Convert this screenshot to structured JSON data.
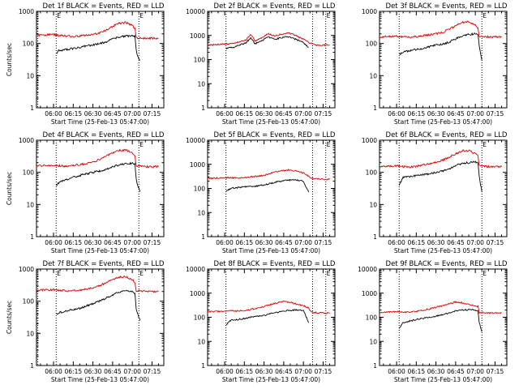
{
  "figure": {
    "panel_title_suffix": "BLACK = Events, RED = LLD",
    "colors": {
      "events": "#000000",
      "lld": "#dd0000",
      "frame": "#000000"
    }
  },
  "chart_data": [
    {
      "type": "line",
      "title": "Det 1f BLACK = Events, RED = LLD",
      "xlabel": "Start Time (25-Feb-13 05:47:00)",
      "ylabel": "Counts/sec",
      "yscale": "log",
      "ylim": [
        1,
        1000
      ],
      "xlim": [
        "05:47",
        "07:24"
      ],
      "yticks": [
        "1",
        "10",
        "100",
        "1000"
      ],
      "xticks": [
        "06:00",
        "06:15",
        "06:30",
        "06:45",
        "07:00",
        "07:15"
      ],
      "markers": [
        "05:48",
        "06:02",
        "07:05"
      ],
      "marker_labels": [
        "E",
        "E"
      ],
      "series": [
        {
          "color": "#000000",
          "x": [
            "06:02",
            "06:04",
            "06:10",
            "06:15",
            "06:20",
            "06:25",
            "06:30",
            "06:35",
            "06:40",
            "06:45",
            "06:50",
            "06:55",
            "07:00",
            "07:02",
            "07:03",
            "07:04",
            "07:06"
          ],
          "y": [
            50,
            60,
            65,
            70,
            75,
            85,
            90,
            100,
            110,
            140,
            160,
            170,
            175,
            170,
            60,
            40,
            30
          ]
        },
        {
          "color": "#dd0000",
          "x": [
            "05:47",
            "05:55",
            "06:00",
            "06:05",
            "06:10",
            "06:15",
            "06:20",
            "06:25",
            "06:30",
            "06:35",
            "06:40",
            "06:45",
            "06:50",
            "06:55",
            "07:00",
            "07:02",
            "07:03",
            "07:10",
            "07:20"
          ],
          "y": [
            180,
            185,
            190,
            175,
            170,
            165,
            170,
            180,
            190,
            210,
            260,
            340,
            430,
            450,
            360,
            300,
            150,
            145,
            145
          ]
        }
      ]
    },
    {
      "type": "line",
      "title": "Det 2f BLACK = Events, RED = LLD",
      "xlabel": "Start Time (25-Feb-13 05:47:00)",
      "ylabel": "",
      "yscale": "log",
      "ylim": [
        1,
        10000
      ],
      "xlim": [
        "05:47",
        "07:24"
      ],
      "yticks": [
        "1",
        "10",
        "100",
        "1000",
        "10000"
      ],
      "xticks": [
        "06:00",
        "06:15",
        "06:30",
        "06:45",
        "07:00",
        "07:15"
      ],
      "markers": [
        "06:01",
        "07:07",
        "07:17"
      ],
      "marker_labels": [
        "E"
      ],
      "series": [
        {
          "color": "#000000",
          "x": [
            "06:01",
            "06:07",
            "06:11",
            "06:16",
            "06:20",
            "06:23",
            "06:28",
            "06:33",
            "06:38",
            "06:43",
            "06:48",
            "06:54",
            "07:00",
            "07:04"
          ],
          "y": [
            300,
            320,
            400,
            480,
            800,
            450,
            600,
            850,
            700,
            800,
            900,
            700,
            500,
            320
          ]
        },
        {
          "color": "#dd0000",
          "x": [
            "05:47",
            "05:55",
            "06:01",
            "06:07",
            "06:11",
            "06:16",
            "06:20",
            "06:23",
            "06:28",
            "06:33",
            "06:38",
            "06:43",
            "06:48",
            "06:54",
            "07:00",
            "07:05",
            "07:10",
            "07:20"
          ],
          "y": [
            400,
            420,
            450,
            480,
            550,
            650,
            1100,
            600,
            780,
            1200,
            950,
            1100,
            1300,
            1000,
            700,
            480,
            400,
            400
          ]
        }
      ]
    },
    {
      "type": "line",
      "title": "Det 3f BLACK = Events, RED = LLD",
      "xlabel": "Start Time (25-Feb-13 05:47:00)",
      "ylabel": "",
      "yscale": "log",
      "ylim": [
        1,
        1000
      ],
      "xlim": [
        "05:47",
        "07:24"
      ],
      "yticks": [
        "1",
        "10",
        "100",
        "1000"
      ],
      "xticks": [
        "06:00",
        "06:15",
        "06:30",
        "06:45",
        "07:00",
        "07:15"
      ],
      "markers": [
        "06:02",
        "07:05"
      ],
      "marker_labels": [
        "E"
      ],
      "series": [
        {
          "color": "#000000",
          "x": [
            "06:02",
            "06:05",
            "06:10",
            "06:15",
            "06:20",
            "06:25",
            "06:30",
            "06:35",
            "06:40",
            "06:45",
            "06:50",
            "06:55",
            "07:00",
            "07:02",
            "07:03",
            "07:05"
          ],
          "y": [
            45,
            55,
            60,
            65,
            70,
            80,
            90,
            95,
            110,
            140,
            170,
            190,
            200,
            190,
            80,
            30
          ]
        },
        {
          "color": "#dd0000",
          "x": [
            "05:47",
            "05:55",
            "06:00",
            "06:05",
            "06:10",
            "06:15",
            "06:20",
            "06:25",
            "06:30",
            "06:35",
            "06:40",
            "06:45",
            "06:50",
            "06:55",
            "07:00",
            "07:02",
            "07:03",
            "07:10",
            "07:20"
          ],
          "y": [
            160,
            165,
            170,
            160,
            155,
            165,
            175,
            185,
            200,
            220,
            280,
            350,
            450,
            470,
            380,
            300,
            170,
            160,
            160
          ]
        }
      ]
    },
    {
      "type": "line",
      "title": "Det 4f BLACK = Events, RED = LLD",
      "xlabel": "Start Time (25-Feb-13 05:47:00)",
      "ylabel": "Counts/sec",
      "yscale": "log",
      "ylim": [
        1,
        1000
      ],
      "xlim": [
        "05:47",
        "07:24"
      ],
      "yticks": [
        "1",
        "10",
        "100",
        "1000"
      ],
      "xticks": [
        "06:00",
        "06:15",
        "06:30",
        "06:45",
        "07:00",
        "07:15"
      ],
      "markers": [
        "06:02",
        "07:05"
      ],
      "marker_labels": [
        "E"
      ],
      "series": [
        {
          "color": "#000000",
          "x": [
            "06:02",
            "06:05",
            "06:10",
            "06:15",
            "06:20",
            "06:25",
            "06:30",
            "06:35",
            "06:40",
            "06:45",
            "06:50",
            "06:55",
            "07:00",
            "07:02",
            "07:03",
            "07:04",
            "07:06"
          ],
          "y": [
            40,
            50,
            60,
            70,
            80,
            90,
            100,
            110,
            125,
            150,
            170,
            185,
            190,
            180,
            60,
            40,
            25
          ]
        },
        {
          "color": "#dd0000",
          "x": [
            "05:47",
            "05:55",
            "06:00",
            "06:05",
            "06:10",
            "06:15",
            "06:20",
            "06:25",
            "06:30",
            "06:35",
            "06:40",
            "06:45",
            "06:50",
            "06:55",
            "07:00",
            "07:02",
            "07:03",
            "07:10",
            "07:20"
          ],
          "y": [
            160,
            165,
            170,
            160,
            155,
            165,
            175,
            185,
            210,
            250,
            320,
            400,
            480,
            500,
            400,
            330,
            160,
            150,
            150
          ]
        }
      ]
    },
    {
      "type": "line",
      "title": "Det 5f BLACK = Events, RED = LLD",
      "xlabel": "Start Time (25-Feb-13 05:47:00)",
      "ylabel": "",
      "yscale": "log",
      "ylim": [
        1,
        10000
      ],
      "xlim": [
        "05:47",
        "07:24"
      ],
      "yticks": [
        "1",
        "10",
        "100",
        "1000",
        "10000"
      ],
      "xticks": [
        "06:00",
        "06:15",
        "06:30",
        "06:45",
        "07:00",
        "07:15"
      ],
      "markers": [
        "06:01",
        "07:07",
        "07:17"
      ],
      "marker_labels": [
        "E"
      ],
      "series": [
        {
          "color": "#000000",
          "x": [
            "06:01",
            "06:05",
            "06:10",
            "06:15",
            "06:20",
            "06:25",
            "06:30",
            "06:35",
            "06:40",
            "06:45",
            "06:50",
            "06:55",
            "07:00",
            "07:04"
          ],
          "y": [
            80,
            100,
            110,
            115,
            120,
            125,
            140,
            160,
            190,
            210,
            220,
            220,
            200,
            70
          ]
        },
        {
          "color": "#dd0000",
          "x": [
            "05:47",
            "05:55",
            "06:00",
            "06:05",
            "06:10",
            "06:15",
            "06:20",
            "06:25",
            "06:30",
            "06:35",
            "06:40",
            "06:45",
            "06:50",
            "06:55",
            "07:00",
            "07:04",
            "07:06",
            "07:15",
            "07:20"
          ],
          "y": [
            260,
            270,
            280,
            275,
            270,
            280,
            300,
            320,
            350,
            420,
            500,
            560,
            580,
            520,
            440,
            330,
            260,
            240,
            240
          ]
        }
      ]
    },
    {
      "type": "line",
      "title": "Det 6f BLACK = Events, RED = LLD",
      "xlabel": "Start Time (25-Feb-13 05:47:00)",
      "ylabel": "",
      "yscale": "log",
      "ylim": [
        1,
        1000
      ],
      "xlim": [
        "05:47",
        "07:24"
      ],
      "yticks": [
        "1",
        "10",
        "100",
        "1000"
      ],
      "xticks": [
        "06:00",
        "06:15",
        "06:30",
        "06:45",
        "07:00",
        "07:15"
      ],
      "markers": [
        "06:02",
        "07:05"
      ],
      "marker_labels": [
        "E"
      ],
      "series": [
        {
          "color": "#000000",
          "x": [
            "06:02",
            "06:05",
            "06:10",
            "06:15",
            "06:20",
            "06:25",
            "06:30",
            "06:35",
            "06:40",
            "06:45",
            "06:50",
            "06:55",
            "07:00",
            "07:02",
            "07:03",
            "07:05"
          ],
          "y": [
            40,
            70,
            75,
            80,
            85,
            90,
            100,
            110,
            130,
            160,
            190,
            200,
            210,
            200,
            70,
            25
          ]
        },
        {
          "color": "#dd0000",
          "x": [
            "05:47",
            "05:55",
            "06:00",
            "06:05",
            "06:10",
            "06:15",
            "06:20",
            "06:25",
            "06:30",
            "06:35",
            "06:40",
            "06:45",
            "06:50",
            "06:55",
            "07:00",
            "07:02",
            "07:03",
            "07:10",
            "07:20"
          ],
          "y": [
            150,
            155,
            160,
            150,
            145,
            155,
            170,
            185,
            200,
            240,
            300,
            380,
            460,
            480,
            380,
            320,
            160,
            150,
            150
          ]
        }
      ]
    },
    {
      "type": "line",
      "title": "Det 7f BLACK = Events, RED = LLD",
      "xlabel": "Start Time (25-Feb-13 05:47:00)",
      "ylabel": "Counts/sec",
      "yscale": "log",
      "ylim": [
        1,
        1000
      ],
      "xlim": [
        "05:47",
        "07:24"
      ],
      "yticks": [
        "1",
        "10",
        "100",
        "1000"
      ],
      "xticks": [
        "06:00",
        "06:15",
        "06:30",
        "06:45",
        "07:00",
        "07:15"
      ],
      "markers": [
        "05:48",
        "06:02",
        "07:05"
      ],
      "marker_labels": [
        "E",
        "E"
      ],
      "series": [
        {
          "color": "#000000",
          "x": [
            "06:02",
            "06:05",
            "06:10",
            "06:15",
            "06:20",
            "06:25",
            "06:30",
            "06:35",
            "06:40",
            "06:45",
            "06:50",
            "06:55",
            "07:00",
            "07:02",
            "07:03",
            "07:04",
            "07:06"
          ],
          "y": [
            40,
            45,
            50,
            55,
            60,
            70,
            85,
            100,
            125,
            160,
            190,
            210,
            200,
            170,
            60,
            40,
            25
          ]
        },
        {
          "color": "#dd0000",
          "x": [
            "05:47",
            "05:55",
            "06:00",
            "06:05",
            "06:10",
            "06:15",
            "06:20",
            "06:25",
            "06:30",
            "06:35",
            "06:40",
            "06:45",
            "06:50",
            "06:55",
            "07:00",
            "07:02",
            "07:03",
            "07:10",
            "07:20"
          ],
          "y": [
            220,
            225,
            230,
            220,
            210,
            215,
            225,
            240,
            260,
            300,
            380,
            480,
            560,
            580,
            470,
            380,
            210,
            200,
            200
          ]
        }
      ]
    },
    {
      "type": "line",
      "title": "Det 8f BLACK = Events, RED = LLD",
      "xlabel": "Start Time (25-Feb-13 05:47:00)",
      "ylabel": "",
      "yscale": "log",
      "ylim": [
        1,
        10000
      ],
      "xlim": [
        "05:47",
        "07:24"
      ],
      "yticks": [
        "1",
        "10",
        "100",
        "1000",
        "10000"
      ],
      "xticks": [
        "06:00",
        "06:15",
        "06:30",
        "06:45",
        "07:00",
        "07:15"
      ],
      "markers": [
        "06:01",
        "07:07",
        "07:17"
      ],
      "marker_labels": [
        "E"
      ],
      "series": [
        {
          "color": "#000000",
          "x": [
            "06:01",
            "06:05",
            "06:10",
            "06:15",
            "06:20",
            "06:25",
            "06:30",
            "06:35",
            "06:40",
            "06:45",
            "06:50",
            "06:55",
            "07:00",
            "07:04"
          ],
          "y": [
            50,
            75,
            80,
            90,
            100,
            110,
            120,
            140,
            160,
            180,
            195,
            200,
            190,
            60
          ]
        },
        {
          "color": "#dd0000",
          "x": [
            "05:47",
            "05:55",
            "06:00",
            "06:05",
            "06:10",
            "06:15",
            "06:20",
            "06:25",
            "06:30",
            "06:35",
            "06:40",
            "06:45",
            "06:50",
            "06:55",
            "07:00",
            "07:04",
            "07:06",
            "07:15",
            "07:20"
          ],
          "y": [
            170,
            175,
            180,
            185,
            180,
            190,
            210,
            240,
            280,
            330,
            400,
            450,
            420,
            350,
            300,
            250,
            160,
            150,
            150
          ]
        }
      ]
    },
    {
      "type": "line",
      "title": "Det 9f BLACK = Events, RED = LLD",
      "xlabel": "Start Time (25-Feb-13 05:47:00)",
      "ylabel": "",
      "yscale": "log",
      "ylim": [
        1,
        10000
      ],
      "xlim": [
        "05:47",
        "07:24"
      ],
      "yticks": [
        "1",
        "10",
        "100",
        "1000",
        "10000"
      ],
      "xticks": [
        "06:00",
        "06:15",
        "06:30",
        "06:45",
        "07:00",
        "07:15"
      ],
      "markers": [
        "06:02",
        "07:05"
      ],
      "marker_labels": [
        "E"
      ],
      "series": [
        {
          "color": "#000000",
          "x": [
            "06:02",
            "06:05",
            "06:10",
            "06:15",
            "06:20",
            "06:25",
            "06:30",
            "06:35",
            "06:40",
            "06:45",
            "06:50",
            "06:55",
            "07:00",
            "07:02",
            "07:03",
            "07:05"
          ],
          "y": [
            35,
            60,
            70,
            80,
            90,
            100,
            110,
            130,
            150,
            180,
            200,
            210,
            200,
            180,
            60,
            25
          ]
        },
        {
          "color": "#dd0000",
          "x": [
            "05:47",
            "05:55",
            "06:00",
            "06:05",
            "06:10",
            "06:15",
            "06:20",
            "06:25",
            "06:30",
            "06:35",
            "06:40",
            "06:45",
            "06:50",
            "06:55",
            "07:00",
            "07:02",
            "07:03",
            "07:10",
            "07:20"
          ],
          "y": [
            160,
            165,
            170,
            165,
            165,
            175,
            195,
            220,
            260,
            300,
            370,
            430,
            400,
            340,
            300,
            280,
            160,
            150,
            150
          ]
        }
      ]
    }
  ]
}
